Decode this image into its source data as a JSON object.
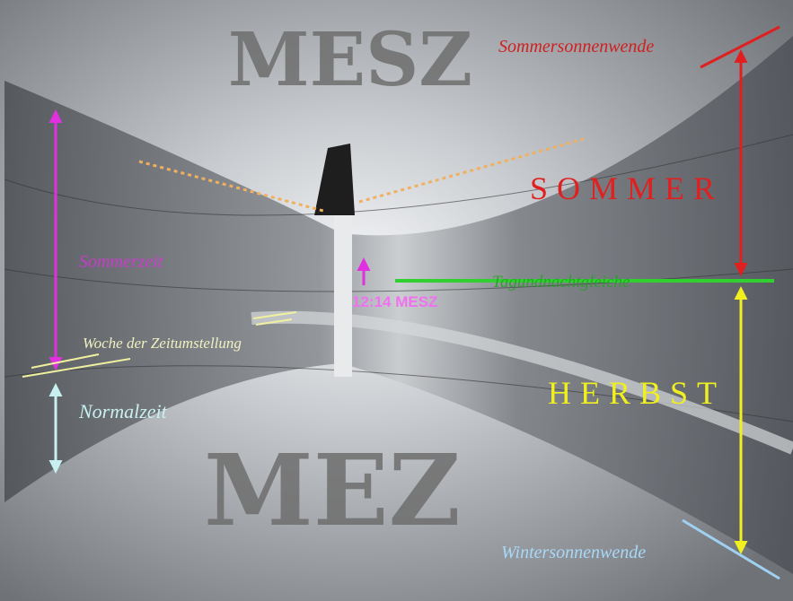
{
  "engraving": {
    "top": "MESZ",
    "bottom": "MEZ"
  },
  "annotations": {
    "summer_solstice": "Sommersonnenwende",
    "summer": "SOMMER",
    "summer_time": "Sommerzeit",
    "time": "12:14 MESZ",
    "equinox": "Tagundnachtgleiche",
    "changeover_week": "Woche der Zeitumstellung",
    "standard_time": "Normalzeit",
    "autumn": "HERBST",
    "winter_solstice": "Wintersonnenwende"
  }
}
